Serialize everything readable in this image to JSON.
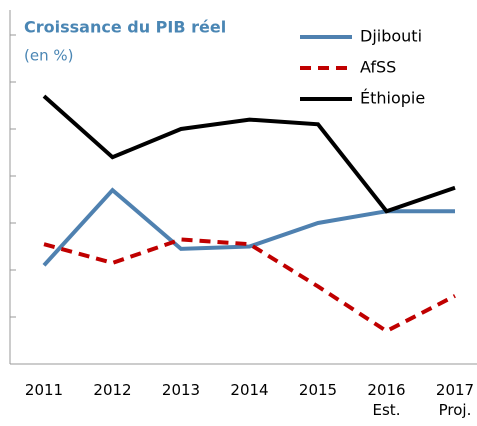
{
  "chart_data": {
    "type": "line",
    "title": "Croissance du PIB réel",
    "subtitle": "(en %)",
    "categories": [
      "2011",
      "2012",
      "2013",
      "2014",
      "2015",
      "2016\nEst.",
      "2017\nProj."
    ],
    "series": [
      {
        "name": "Djibouti",
        "color": "#4f81b0",
        "dash": false,
        "values": [
          4.2,
          7.4,
          4.9,
          5.0,
          6.0,
          6.5,
          6.5
        ]
      },
      {
        "name": "AfSS",
        "color": "#c00000",
        "dash": true,
        "values": [
          5.1,
          4.3,
          5.3,
          5.1,
          3.3,
          1.4,
          2.9
        ]
      },
      {
        "name": "Éthiopie",
        "color": "#000000",
        "dash": false,
        "values": [
          11.4,
          8.8,
          10.0,
          10.4,
          10.2,
          6.5,
          7.5
        ]
      }
    ],
    "ylim": [
      0,
      15
    ],
    "yticks": [
      0,
      2,
      4,
      6,
      8,
      10,
      12,
      14
    ],
    "grid": false,
    "legend": "top-right"
  }
}
